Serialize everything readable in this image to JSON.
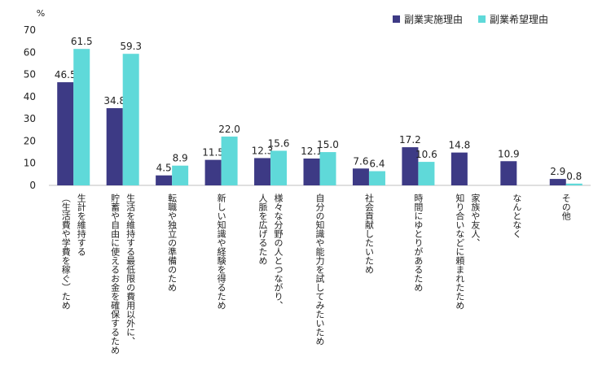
{
  "chart_data": {
    "type": "bar",
    "unit_label": "%",
    "ylim": [
      0,
      70
    ],
    "yticks": [
      0,
      10,
      20,
      30,
      40,
      50,
      60,
      70
    ],
    "grid": false,
    "legend_position": "top-right",
    "categories": [
      [
        "（生活費や学費を稼ぐ）ため",
        "生計を維持する"
      ],
      [
        "貯蓄や自由に使えるお金を確保するため",
        "生活を維持する最低限の費用以外に、"
      ],
      [
        "転職や独立の準備のため"
      ],
      [
        "新しい知識や経験を得るため"
      ],
      [
        "人脈を広げるため",
        "様々な分野の人とつながり、"
      ],
      [
        "自分の知識や能力を試してみたいため"
      ],
      [
        "社会貢献したいため"
      ],
      [
        "時間にゆとりがあるため"
      ],
      [
        "知り合いなどに頼まれたため",
        "家族や友人、"
      ],
      [
        "なんとなく"
      ],
      [
        "その他"
      ]
    ],
    "series": [
      {
        "name": "副業実施理由",
        "color": "#3d3a85",
        "values": [
          46.5,
          34.8,
          4.5,
          11.5,
          12.3,
          12.1,
          7.6,
          17.2,
          14.8,
          10.9,
          2.9
        ]
      },
      {
        "name": "副業希望理由",
        "color": "#5fd9d9",
        "values": [
          61.5,
          59.3,
          8.9,
          22.0,
          15.6,
          15.0,
          6.4,
          10.6,
          null,
          null,
          0.8
        ]
      }
    ]
  }
}
